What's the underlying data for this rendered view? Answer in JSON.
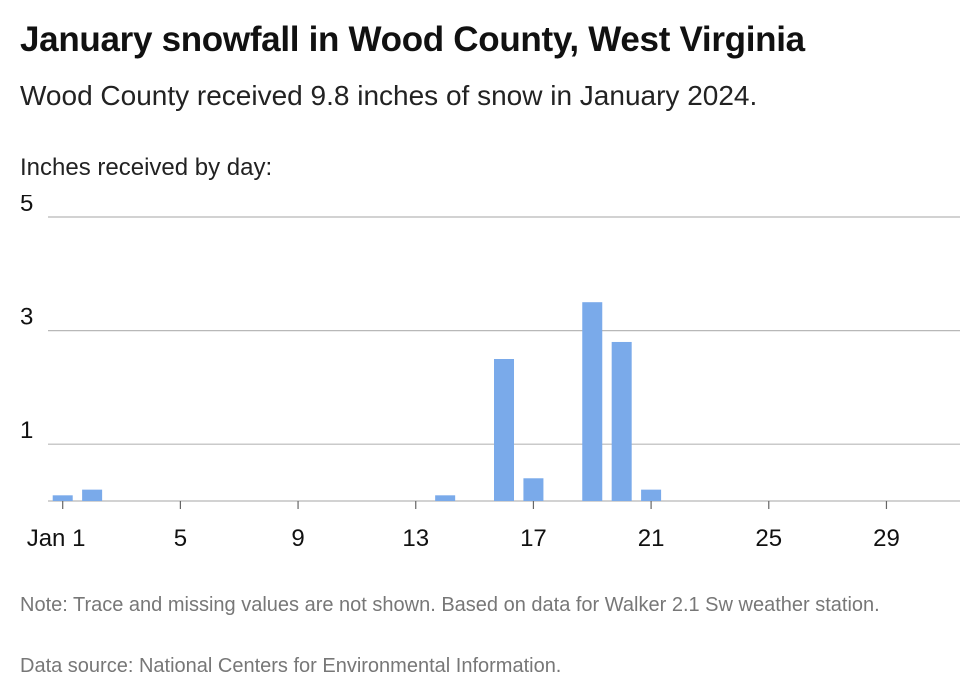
{
  "header": {
    "title": "January snowfall in Wood County, West Virginia",
    "subtitle": "Wood County received 9.8 inches of snow in January 2024."
  },
  "footer": {
    "note": "Note: Trace and missing values are not shown. Based on data for Walker 2.1 Sw weather station.",
    "source": "Data source: National Centers for Environmental Information."
  },
  "chart_data": {
    "type": "bar",
    "ylabel": "Inches received by day:",
    "xlabel": "",
    "ylim": [
      0,
      5
    ],
    "y_ticks": [
      1,
      3,
      5
    ],
    "grid": true,
    "bar_color": "#7aaaea",
    "x_ticks": [
      {
        "day": 1,
        "label": "Jan 1"
      },
      {
        "day": 5,
        "label": "5"
      },
      {
        "day": 9,
        "label": "9"
      },
      {
        "day": 13,
        "label": "13"
      },
      {
        "day": 17,
        "label": "17"
      },
      {
        "day": 21,
        "label": "21"
      },
      {
        "day": 25,
        "label": "25"
      },
      {
        "day": 29,
        "label": "29"
      }
    ],
    "series": [
      {
        "x": [
          1,
          2,
          14,
          16,
          17,
          19,
          20,
          21
        ],
        "values": [
          0.1,
          0.2,
          0.1,
          2.5,
          0.4,
          3.5,
          2.8,
          0.2
        ]
      }
    ]
  }
}
